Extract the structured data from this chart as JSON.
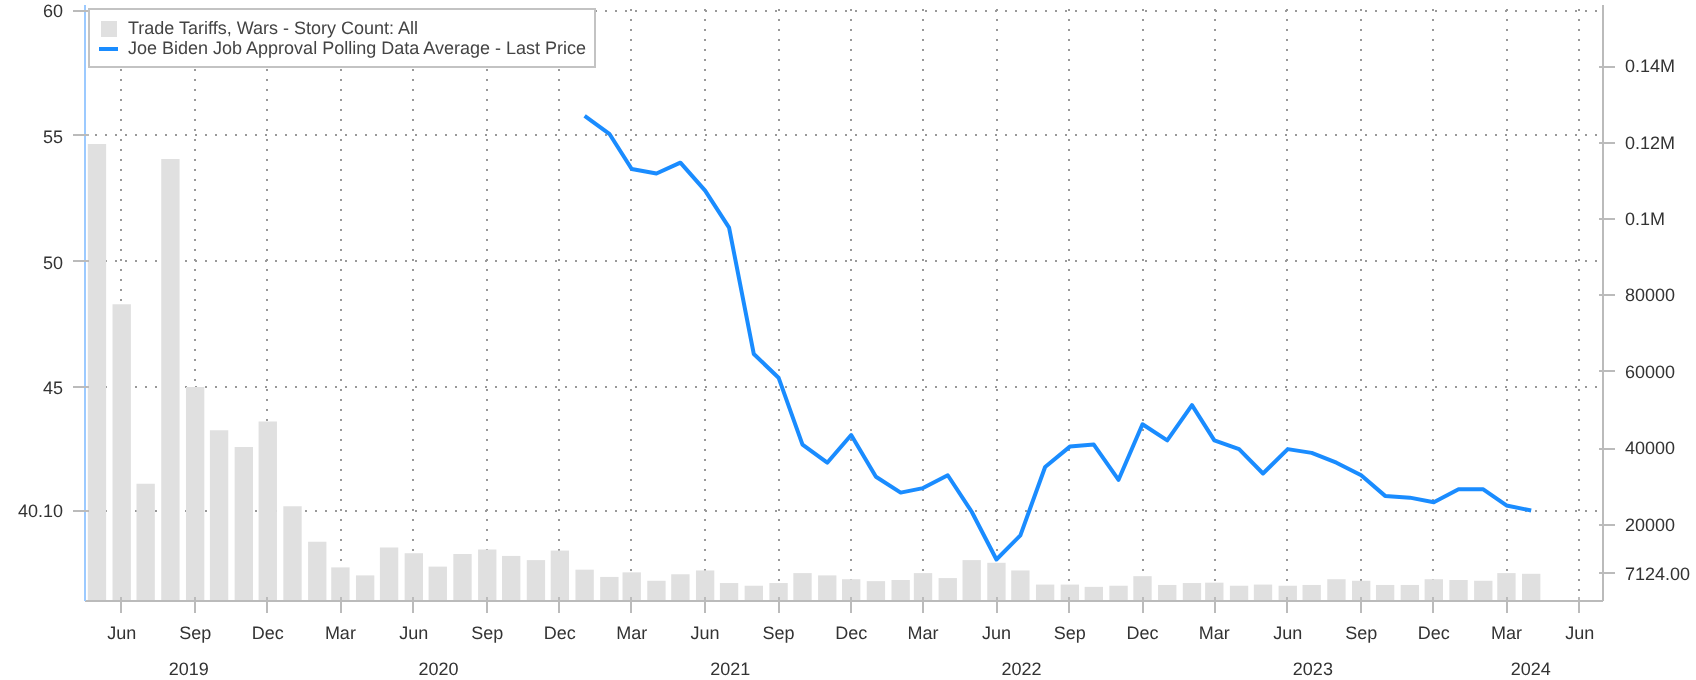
{
  "chart_data": {
    "type": "bar",
    "xlim": [
      "2019-04-16",
      "2024-06-30"
    ],
    "xticks": [
      {
        "value": "2019-06",
        "label": "Jun"
      },
      {
        "value": "2019-09",
        "label": "Sep"
      },
      {
        "value": "2019-12",
        "label": "Dec"
      },
      {
        "value": "2020-03",
        "label": "Mar"
      },
      {
        "value": "2020-06",
        "label": "Jun"
      },
      {
        "value": "2020-09",
        "label": "Sep"
      },
      {
        "value": "2020-12",
        "label": "Dec"
      },
      {
        "value": "2021-03",
        "label": "Mar"
      },
      {
        "value": "2021-06",
        "label": "Jun"
      },
      {
        "value": "2021-09",
        "label": "Sep"
      },
      {
        "value": "2021-12",
        "label": "Dec"
      },
      {
        "value": "2022-03",
        "label": "Mar"
      },
      {
        "value": "2022-06",
        "label": "Jun"
      },
      {
        "value": "2022-09",
        "label": "Sep"
      },
      {
        "value": "2022-12",
        "label": "Dec"
      },
      {
        "value": "2023-03",
        "label": "Mar"
      },
      {
        "value": "2023-06",
        "label": "Jun"
      },
      {
        "value": "2023-09",
        "label": "Sep"
      },
      {
        "value": "2023-12",
        "label": "Dec"
      },
      {
        "value": "2024-03",
        "label": "Mar"
      },
      {
        "value": "2024-06",
        "label": "Jun"
      }
    ],
    "ylim": [
      36.5,
      60.2
    ],
    "yticks": [
      {
        "value": 40.1,
        "label": "40.10"
      },
      45,
      50,
      55,
      60
    ],
    "y2lim": [
      0,
      156000
    ],
    "y2ticks": [
      {
        "value": 7124,
        "label": "7124.00"
      },
      20000,
      40000,
      60000,
      80000,
      {
        "value": 100000,
        "label": "0.1M"
      },
      {
        "value": 120000,
        "label": "0.12M"
      },
      {
        "value": 140000,
        "label": "0.14M"
      }
    ],
    "grid": true,
    "legend": "top left",
    "annotations": [
      "2019",
      "2020",
      "2021",
      "2022",
      "2023",
      "2024"
    ],
    "series": [
      {
        "name": "Trade Tariffs, Wars - Story Count: All",
        "axis": "y2",
        "color": "#e0e0e0",
        "x": [
          "2019-05",
          "2019-06",
          "2019-07",
          "2019-08",
          "2019-09",
          "2019-10",
          "2019-11",
          "2019-12",
          "2020-01",
          "2020-02",
          "2020-03",
          "2020-04",
          "2020-05",
          "2020-06",
          "2020-07",
          "2020-08",
          "2020-09",
          "2020-10",
          "2020-11",
          "2020-12",
          "2021-01",
          "2021-02",
          "2021-03",
          "2021-04",
          "2021-05",
          "2021-06",
          "2021-07",
          "2021-08",
          "2021-09",
          "2021-10",
          "2021-11",
          "2021-12",
          "2022-01",
          "2022-02",
          "2022-03",
          "2022-04",
          "2022-05",
          "2022-06",
          "2022-07",
          "2022-08",
          "2022-09",
          "2022-10",
          "2022-11",
          "2022-12",
          "2023-01",
          "2023-02",
          "2023-03",
          "2023-04",
          "2023-05",
          "2023-06",
          "2023-07",
          "2023-08",
          "2023-09",
          "2023-10",
          "2023-11",
          "2023-12",
          "2024-01",
          "2024-02",
          "2024-03",
          "2024-04"
        ],
        "values": [
          119600,
          77700,
          30700,
          115700,
          56000,
          44700,
          40300,
          47000,
          24800,
          15500,
          8800,
          6700,
          14000,
          12500,
          9000,
          12300,
          13500,
          11800,
          10700,
          13200,
          8200,
          6300,
          7500,
          5300,
          7000,
          8000,
          4700,
          4000,
          4700,
          7300,
          6700,
          5700,
          5200,
          5500,
          7300,
          6000,
          10700,
          10000,
          8000,
          4300,
          4300,
          3700,
          4000,
          6500,
          4200,
          4700,
          4800,
          4000,
          4300,
          4000,
          4200,
          5700,
          5300,
          4200,
          4200,
          5700,
          5500,
          5300,
          7300,
          7124
        ]
      },
      {
        "name": "Joe Biden Job Approval Polling Data Average - Last Price",
        "type": "line",
        "color": "#1a8cff",
        "x": [
          "2021-01",
          "2021-02",
          "2021-03",
          "2021-04",
          "2021-05",
          "2021-06",
          "2021-07",
          "2021-08",
          "2021-09",
          "2021-10",
          "2021-11",
          "2021-12",
          "2022-01",
          "2022-02",
          "2022-03",
          "2022-04",
          "2022-05",
          "2022-06",
          "2022-07",
          "2022-08",
          "2022-09",
          "2022-10",
          "2022-11",
          "2022-12",
          "2023-01",
          "2023-02",
          "2023-03",
          "2023-04",
          "2023-05",
          "2023-06",
          "2023-07",
          "2023-08",
          "2023-09",
          "2023-10",
          "2023-11",
          "2023-12",
          "2024-01",
          "2024-02",
          "2024-03",
          "2024-04"
        ],
        "values": [
          55.79,
          55.08,
          53.68,
          53.5,
          53.93,
          52.82,
          51.35,
          46.32,
          45.38,
          42.72,
          42.0,
          43.1,
          41.44,
          40.81,
          40.99,
          41.5,
          40.05,
          38.15,
          39.11,
          41.83,
          42.64,
          42.72,
          41.32,
          43.53,
          42.89,
          44.29,
          42.89,
          42.54,
          41.57,
          42.54,
          42.39,
          42.0,
          41.5,
          40.68,
          40.61,
          40.43,
          40.94,
          40.94,
          40.3,
          40.1
        ]
      }
    ]
  }
}
